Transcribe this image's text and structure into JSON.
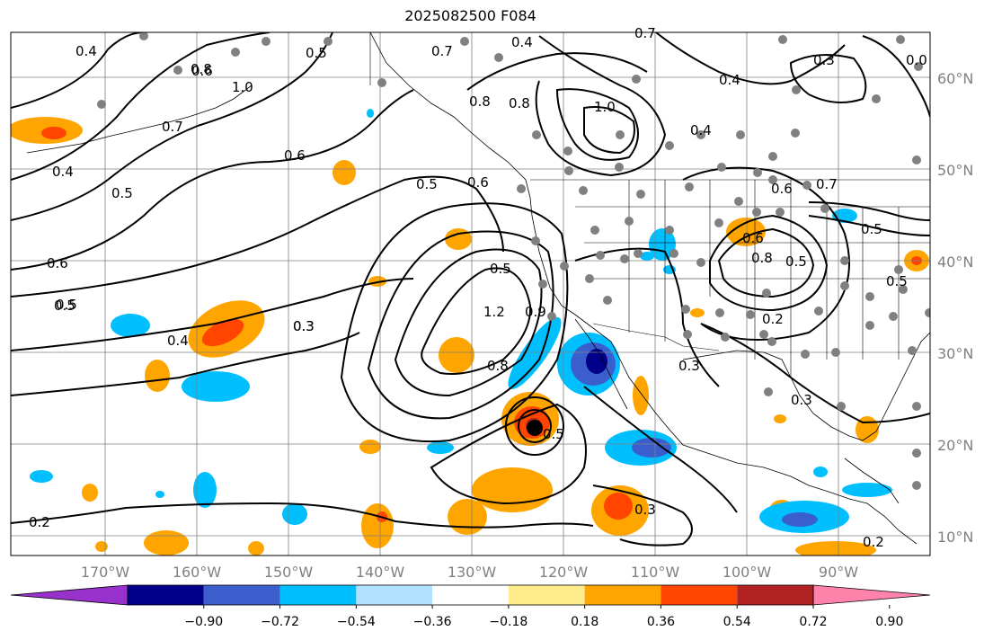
{
  "title": "2025082500 F084",
  "map": {
    "lat_labels": [
      "60°N",
      "50°N",
      "40°N",
      "30°N",
      "20°N",
      "10°N"
    ],
    "lon_labels": [
      "170°W",
      "160°W",
      "150°W",
      "140°W",
      "130°W",
      "120°W",
      "110°W",
      "100°W",
      "90°W"
    ],
    "contour_labels": [
      "0.4",
      "0.6",
      "0.5",
      "0.5",
      "0.8",
      "1.0",
      "0.7",
      "0.4",
      "0.6",
      "0.5",
      "0.7",
      "0.8",
      "1.0",
      "0.4",
      "0.3",
      "0.0",
      "0.4",
      "0.7",
      "0.5",
      "0.6",
      "0.5",
      "0.6",
      "0.4",
      "0.5",
      "0.6",
      "0.7",
      "0.5",
      "0.6",
      "0.8",
      "0.8",
      "0.2",
      "0.5",
      "1.2",
      "0.8",
      "0.9",
      "0.3",
      "0.3",
      "0.3",
      "0.4",
      "0.3",
      "0.5",
      "0.2",
      "0.2",
      "0.5",
      "0.3"
    ],
    "colors": {
      "grid": "#808080",
      "ocean_bg": "#ffffff",
      "station_dot": "#808080"
    }
  },
  "colorbar": {
    "ticks": [
      "−0.90",
      "−0.72",
      "−0.54",
      "−0.36",
      "−0.18",
      "0.18",
      "0.36",
      "0.54",
      "0.72",
      "0.90"
    ],
    "colors": [
      "#9932cc",
      "#00008b",
      "#3a5fcd",
      "#00bfff",
      "#b0e2ff",
      "#ffffff",
      "#ffec8b",
      "#ffa500",
      "#ff4500",
      "#b22222",
      "#ff82ab"
    ]
  }
}
